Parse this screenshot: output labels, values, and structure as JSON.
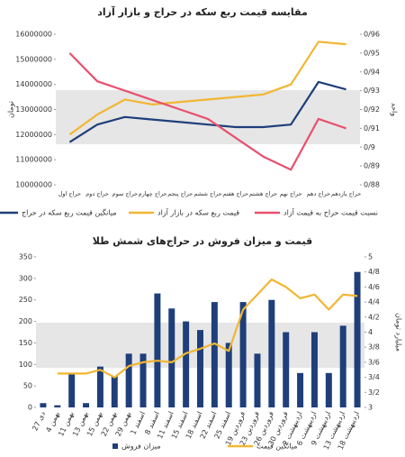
{
  "chart_data": [
    {
      "type": "line",
      "title": "مقایسه قیمت ربع سکه در حراج و بازار آزاد",
      "y_label": "تومان",
      "y2_label": "واحد",
      "categories": [
        "حراج اول",
        "حراج دوم",
        "حراج سوم",
        "حراج چهارم",
        "حراج پنجم",
        "حراج ششم",
        "حراج هفتم",
        "حراج هشتم",
        "حراج نهم",
        "حراج دهم",
        "حراج یازدهم"
      ],
      "series": [
        {
          "name": "میانگین قیمت ربع سکه در حراج",
          "color": "#1f3f7a",
          "type": "line",
          "axis": "y",
          "values": [
            11700000,
            12400000,
            12700000,
            12600000,
            12500000,
            12400000,
            12300000,
            12300000,
            12400000,
            14100000,
            13800000
          ]
        },
        {
          "name": "قیمت ربع سکه در بازار آزاد",
          "color": "#f2b632",
          "type": "line",
          "axis": "y",
          "values": [
            12000000,
            12800000,
            13400000,
            13200000,
            13300000,
            13400000,
            13500000,
            13600000,
            14000000,
            15700000,
            15600000
          ]
        },
        {
          "name": "نسبت قیمت حراج به قیمت آزاد",
          "color": "#e8506e",
          "type": "line",
          "axis": "y2",
          "values": [
            0.95,
            0.935,
            0.93,
            0.925,
            0.92,
            0.915,
            0.905,
            0.895,
            0.888,
            0.915,
            0.91
          ]
        }
      ],
      "ylim": [
        10000000,
        16000000
      ],
      "yticks": [
        10000000,
        11000000,
        12000000,
        13000000,
        14000000,
        15000000,
        16000000
      ],
      "y2lim": [
        0.88,
        0.96
      ],
      "y2ticks": [
        {
          "value": 0.88,
          "label": "0/88"
        },
        {
          "value": 0.89,
          "label": "0/89"
        },
        {
          "value": 0.9,
          "label": "0/9"
        },
        {
          "value": 0.91,
          "label": "0/91"
        },
        {
          "value": 0.92,
          "label": "0/92"
        },
        {
          "value": 0.93,
          "label": "0/93"
        },
        {
          "value": 0.94,
          "label": "0/94"
        },
        {
          "value": 0.95,
          "label": "0/95"
        },
        {
          "value": 0.96,
          "label": "0/96"
        }
      ],
      "grid": false
    },
    {
      "type": "bar-line",
      "title": "قیمت و میزان فروش در حراج‌های شمش طلا",
      "y_label": "کیلوگرم",
      "y2_label": "میلیارد تومان",
      "categories": [
        "27 دی",
        "4 بهمن",
        "11 بهمن",
        "13 بهمن",
        "15 بهمن",
        "22 بهمن",
        "29 بهمن",
        "1 اسفند",
        "8 اسفند",
        "11 اسفند",
        "15 اسفند",
        "18 اسفند",
        "22 اسفند",
        "25 اسفند",
        "19 فروردین",
        "23 فروردین",
        "26 فروردین",
        "30 فروردین",
        "2 اردیبهشت",
        "6 اردیبهشت",
        "9 اردیبهشت",
        "13 اردیبهشت",
        "18 اردیبهشت"
      ],
      "series": [
        {
          "name": "میزان فروش",
          "color": "#1f3f7a",
          "type": "bar",
          "axis": "y",
          "values": [
            10,
            5,
            80,
            10,
            95,
            72,
            125,
            125,
            265,
            230,
            200,
            180,
            245,
            150,
            245,
            125,
            250,
            175,
            80,
            175,
            80,
            190,
            315
          ]
        },
        {
          "name": "میانگین قیمت",
          "color": "#f2b632",
          "type": "line",
          "axis": "y2",
          "values": [
            null,
            3.45,
            3.45,
            3.45,
            3.5,
            3.4,
            3.55,
            3.6,
            3.62,
            3.6,
            3.72,
            3.78,
            3.85,
            3.75,
            4.3,
            4.5,
            4.7,
            4.6,
            4.45,
            4.5,
            4.3,
            4.5,
            4.48
          ]
        }
      ],
      "ylim": [
        0,
        350
      ],
      "yticks": [
        0,
        50,
        100,
        150,
        200,
        250,
        300,
        350
      ],
      "y2lim": [
        3,
        5
      ],
      "y2ticks": [
        3,
        {
          "value": 3.2,
          "label": "3/2"
        },
        {
          "value": 3.4,
          "label": "3/4"
        },
        {
          "value": 3.6,
          "label": "3/6"
        },
        {
          "value": 3.8,
          "label": "3/8"
        },
        4,
        {
          "value": 4.2,
          "label": "4/2"
        },
        {
          "value": 4.4,
          "label": "4/4"
        },
        {
          "value": 4.6,
          "label": "4/6"
        },
        {
          "value": 4.8,
          "label": "4/8"
        },
        5
      ],
      "grid": false
    }
  ]
}
